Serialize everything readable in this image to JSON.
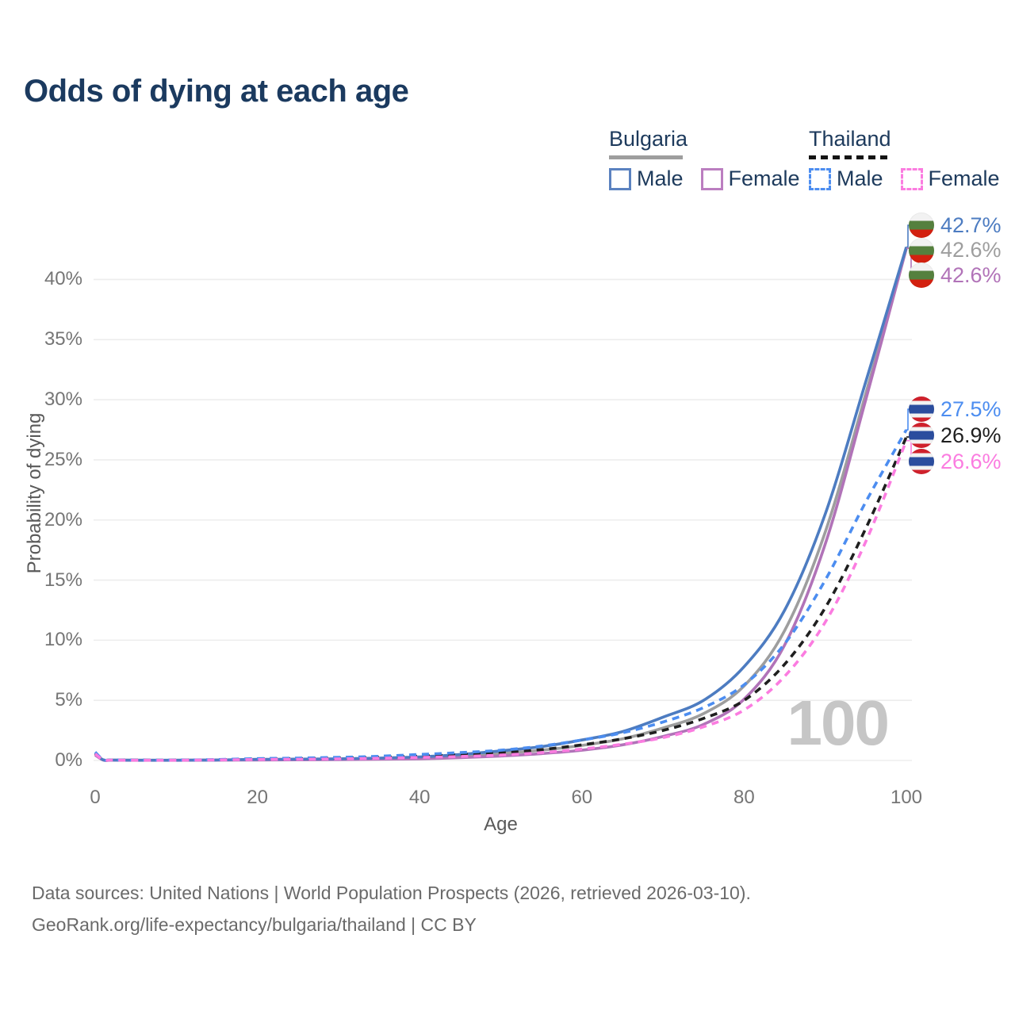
{
  "title": "Odds of dying at each age",
  "axes": {
    "y_label": "Probability of dying",
    "x_label": "Age"
  },
  "watermark": "100",
  "footer": {
    "line1": "Data sources: United Nations | World Population Prospects (2026, retrieved 2026-03-10).",
    "line2": "GeoRank.org/life-expectancy/bulgaria/thailand | CC BY"
  },
  "colors": {
    "title_navy": "#1b3a5f",
    "bulgaria_male": "#4d7cc1",
    "bulgaria_both": "#9e9e9e",
    "bulgaria_female": "#b173b8",
    "thailand_male": "#4c8df0",
    "thailand_both": "#1f1f1f",
    "thailand_female": "#fb7ce0",
    "grid": "#ededed",
    "tick_text": "#757575",
    "watermark": "#c6c6c6"
  },
  "flags": {
    "bulgaria_stripes": [
      "#f2f2f2",
      "#55803e",
      "#d3200f"
    ],
    "thailand_stripes": [
      "#d0212c",
      "#f2f2f2",
      "#2b4d9e",
      "#f2f2f2",
      "#d0212c"
    ]
  },
  "legend": {
    "groups": [
      {
        "name": "Bulgaria",
        "rule_style": "solid",
        "rule_color": "#9e9e9e",
        "rule_width": 93,
        "items": [
          {
            "label": "Male",
            "color": "#5b82c0",
            "dashed": false
          },
          {
            "label": "Female",
            "color": "#bb7ec0",
            "dashed": false
          }
        ]
      },
      {
        "name": "Thailand",
        "rule_style": "dashed",
        "rule_color": "#141414",
        "rule_width": 100,
        "items": [
          {
            "label": "Male",
            "color": "#4c8df0",
            "dashed": true
          },
          {
            "label": "Female",
            "color": "#fb7ce0",
            "dashed": true
          }
        ]
      }
    ]
  },
  "end_labels": {
    "bulgaria": {
      "flag": "bulgaria",
      "rows": [
        {
          "value": "42.7%",
          "color": "#4d7cc1"
        },
        {
          "value": "42.6%",
          "color": "#9e9e9e"
        },
        {
          "value": "42.6%",
          "color": "#b173b8"
        }
      ]
    },
    "thailand": {
      "flag": "thailand",
      "rows": [
        {
          "value": "27.5%",
          "color": "#4c8df0"
        },
        {
          "value": "26.9%",
          "color": "#1f1f1f"
        },
        {
          "value": "26.6%",
          "color": "#fb7ce0"
        }
      ]
    }
  },
  "chart_data": {
    "type": "line",
    "title": "Odds of dying at each age",
    "xlabel": "Age",
    "ylabel": "Probability of dying",
    "xlim": [
      0,
      100
    ],
    "ylim": [
      0,
      44
    ],
    "x_ticks": [
      0,
      20,
      40,
      60,
      80,
      100
    ],
    "y_ticks": [
      0,
      5,
      10,
      15,
      20,
      25,
      30,
      35,
      40
    ],
    "y_tick_suffix": "%",
    "grid": "horizontal",
    "legend_position": "top-right",
    "x": [
      0,
      1,
      2,
      5,
      10,
      15,
      20,
      25,
      30,
      35,
      40,
      45,
      50,
      55,
      60,
      65,
      70,
      75,
      80,
      85,
      90,
      95,
      100
    ],
    "series": [
      {
        "name": "Bulgaria Male",
        "country": "Bulgaria",
        "sex": "Male",
        "color": "#4d7cc1",
        "dash": "solid",
        "end_label": "42.7%",
        "values": [
          0.55,
          0.05,
          0.03,
          0.02,
          0.02,
          0.04,
          0.09,
          0.11,
          0.14,
          0.2,
          0.3,
          0.5,
          0.8,
          1.15,
          1.7,
          2.4,
          3.6,
          5.0,
          7.8,
          12.5,
          20.5,
          31.5,
          42.7
        ]
      },
      {
        "name": "Bulgaria Both sexes",
        "country": "Bulgaria",
        "sex": "Both",
        "color": "#9e9e9e",
        "dash": "solid",
        "end_label": "42.6%",
        "values": [
          0.5,
          0.04,
          0.025,
          0.018,
          0.018,
          0.03,
          0.07,
          0.09,
          0.11,
          0.15,
          0.22,
          0.36,
          0.58,
          0.85,
          1.25,
          1.8,
          2.7,
          3.9,
          6.2,
          10.8,
          19.0,
          30.5,
          42.6
        ]
      },
      {
        "name": "Bulgaria Female",
        "country": "Bulgaria",
        "sex": "Female",
        "color": "#b173b8",
        "dash": "solid",
        "end_label": "42.6%",
        "values": [
          0.45,
          0.035,
          0.02,
          0.015,
          0.015,
          0.025,
          0.04,
          0.05,
          0.07,
          0.1,
          0.14,
          0.23,
          0.37,
          0.57,
          0.85,
          1.3,
          2.0,
          3.0,
          5.1,
          9.6,
          18.0,
          30.0,
          42.6
        ]
      },
      {
        "name": "Thailand Male",
        "country": "Thailand",
        "sex": "Male",
        "color": "#4c8df0",
        "dash": "dashed",
        "end_label": "27.5%",
        "values": [
          0.7,
          0.07,
          0.04,
          0.03,
          0.03,
          0.08,
          0.15,
          0.2,
          0.26,
          0.35,
          0.5,
          0.65,
          0.85,
          1.2,
          1.7,
          2.3,
          3.2,
          4.4,
          6.3,
          9.7,
          15.0,
          21.5,
          27.5
        ]
      },
      {
        "name": "Thailand Both sexes",
        "country": "Thailand",
        "sex": "Both",
        "color": "#1f1f1f",
        "dash": "dashed",
        "end_label": "26.9%",
        "values": [
          0.6,
          0.06,
          0.035,
          0.025,
          0.025,
          0.06,
          0.11,
          0.15,
          0.19,
          0.26,
          0.36,
          0.48,
          0.62,
          0.9,
          1.3,
          1.8,
          2.5,
          3.5,
          5.0,
          8.0,
          12.7,
          19.3,
          26.9
        ]
      },
      {
        "name": "Thailand Female",
        "country": "Thailand",
        "sex": "Female",
        "color": "#fb7ce0",
        "dash": "dashed",
        "end_label": "26.6%",
        "values": [
          0.55,
          0.05,
          0.03,
          0.02,
          0.02,
          0.045,
          0.08,
          0.1,
          0.13,
          0.18,
          0.25,
          0.33,
          0.45,
          0.65,
          0.95,
          1.35,
          1.9,
          2.8,
          4.2,
          7.0,
          11.5,
          18.2,
          26.6
        ]
      }
    ]
  }
}
